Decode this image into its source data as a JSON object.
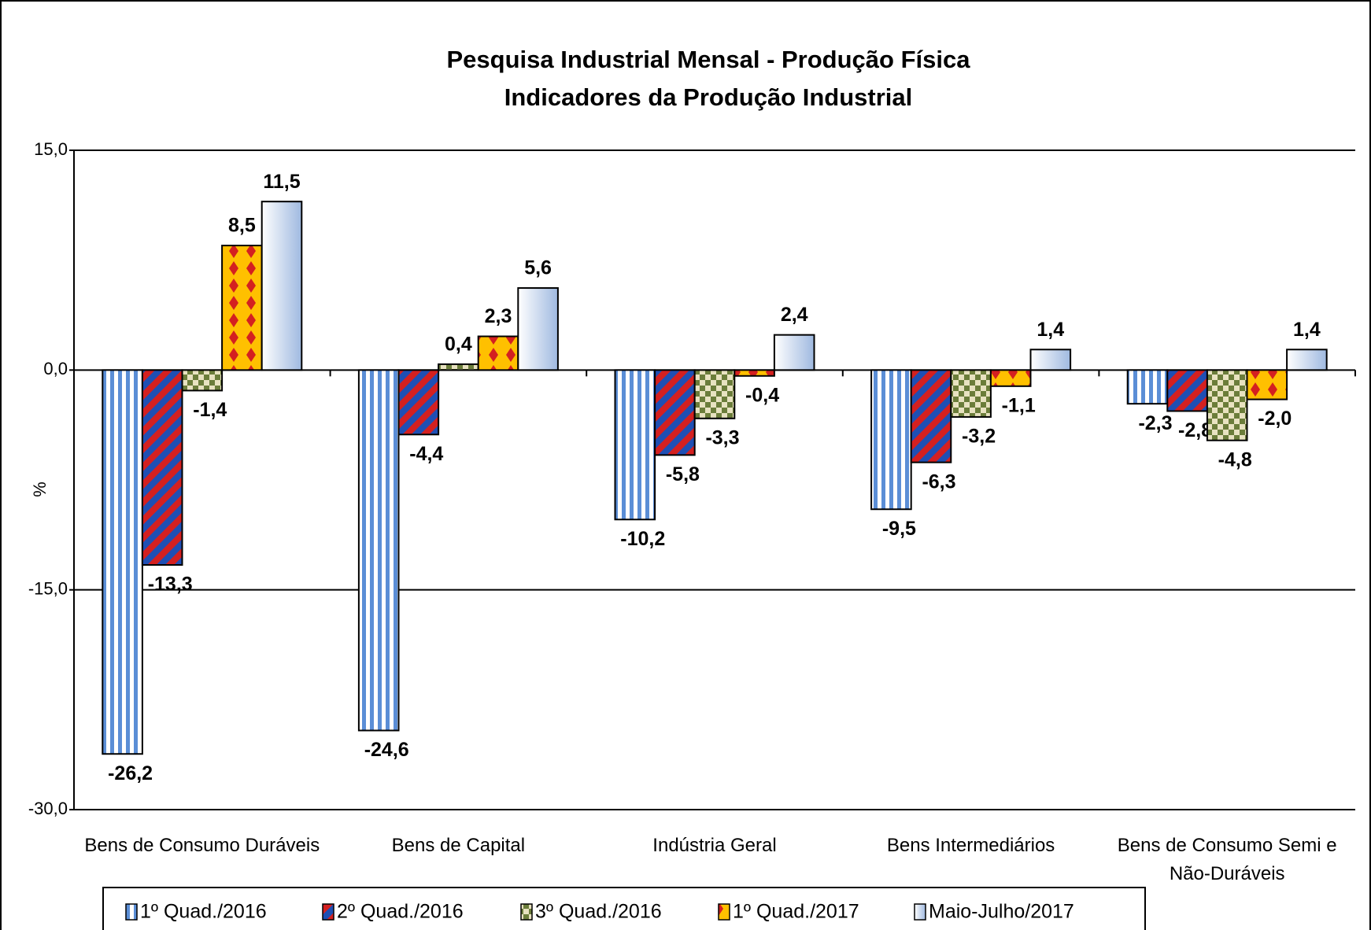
{
  "chart_data": {
    "type": "bar",
    "title": "Pesquisa Industrial Mensal - Produção Física",
    "subtitle": "Indicadores da Produção Industrial",
    "y_label": "%",
    "categories": [
      "Bens de Consumo Duráveis",
      "Bens de Capital",
      "Indústria Geral",
      "Bens Intermediários",
      "Bens de Consumo Semi e Não-Duráveis"
    ],
    "series": [
      {
        "name": "1º Quad./2016",
        "color": "#5b8ed6",
        "values": [
          -26.2,
          -24.6,
          -10.2,
          -9.5,
          -2.3
        ],
        "value_labels": [
          "-26,2",
          "-24,6",
          "-10,2",
          "-9,5",
          "-2,3"
        ]
      },
      {
        "name": "2º Quad./2016",
        "color": "#d42020",
        "values": [
          -13.3,
          -4.4,
          -5.8,
          -6.3,
          -2.8
        ],
        "value_labels": [
          "-13,3",
          "-4,4",
          "-5,8",
          "-6,3",
          "-2,8"
        ]
      },
      {
        "name": "3º Quad./2016",
        "color": "#6b7d3a",
        "values": [
          -1.4,
          0.4,
          -3.3,
          -3.2,
          -4.8
        ],
        "value_labels": [
          "-1,4",
          "0,4",
          "-3,3",
          "-3,2",
          "-4,8"
        ]
      },
      {
        "name": "1º Quad./2017",
        "color": "#ffc000",
        "values": [
          8.5,
          2.3,
          -0.4,
          -1.1,
          -2.0
        ],
        "value_labels": [
          "8,5",
          "2,3",
          "-0,4",
          "-1,1",
          "-2,0"
        ]
      },
      {
        "name": "Maio-Julho/2017",
        "color": "#c9d8ee",
        "values": [
          11.5,
          5.6,
          2.4,
          1.4,
          1.4
        ],
        "value_labels": [
          "11,5",
          "5,6",
          "2,4",
          "1,4",
          "1,4"
        ]
      }
    ],
    "ylim": [
      -30,
      15
    ],
    "yticks": [
      {
        "value": -30,
        "label": "-30,0"
      },
      {
        "value": -15,
        "label": "-15,0"
      },
      {
        "value": 0,
        "label": "0,0"
      },
      {
        "value": 15,
        "label": "15,0"
      }
    ],
    "grid": true,
    "legend": "bottom"
  }
}
